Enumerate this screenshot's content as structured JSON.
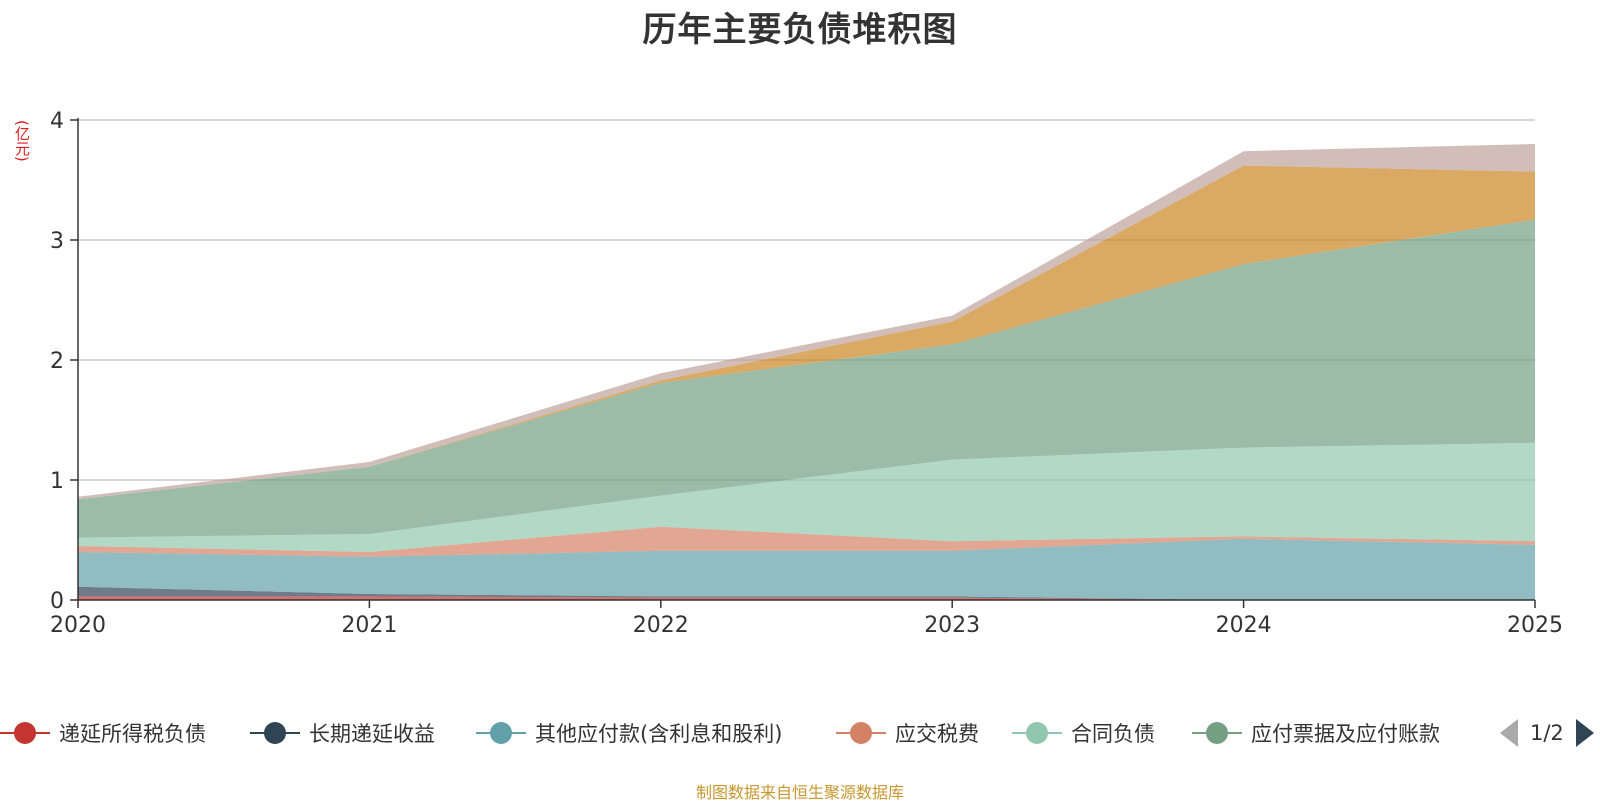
{
  "title": "历年主要负债堆积图",
  "unit_label": "(亿元)",
  "source": "制图数据来自恒生聚源数据库",
  "legend_pager": {
    "text": "1/2"
  },
  "chart_data": {
    "type": "area",
    "stacked": true,
    "title": "历年主要负债堆积图",
    "ylabel": "(亿元)",
    "xlabel": "",
    "x": [
      "2020",
      "2021",
      "2022",
      "2023",
      "2024",
      "2025"
    ],
    "ylim": [
      0,
      4
    ],
    "yticks": [
      0,
      1,
      2,
      3,
      4
    ],
    "grid": true,
    "legend_position": "bottom",
    "series": [
      {
        "name": "递延所得税负债",
        "color": "#c23531",
        "values": [
          0.03,
          0.03,
          0.02,
          0.02,
          0.0,
          0.0
        ],
        "legend": true
      },
      {
        "name": "长期递延收益",
        "color": "#2f4554",
        "values": [
          0.08,
          0.02,
          0.01,
          0.01,
          0.0,
          0.0
        ],
        "legend": true
      },
      {
        "name": "其他应付款(含利息和股利)",
        "color": "#61a0a8",
        "values": [
          0.29,
          0.31,
          0.38,
          0.38,
          0.51,
          0.46
        ],
        "legend": true
      },
      {
        "name": "应交税费",
        "color": "#d48265",
        "values": [
          0.05,
          0.04,
          0.2,
          0.08,
          0.02,
          0.03
        ],
        "legend": true
      },
      {
        "name": "合同负债",
        "color": "#91c7ae",
        "values": [
          0.07,
          0.15,
          0.26,
          0.68,
          0.74,
          0.82
        ],
        "legend": true
      },
      {
        "name": "应付票据及应付账款",
        "color": "#749f83",
        "values": [
          0.32,
          0.56,
          0.94,
          0.96,
          1.53,
          1.86
        ],
        "legend": true
      },
      {
        "name": "",
        "color": "#ca8622",
        "values": [
          0.0,
          0.0,
          0.02,
          0.19,
          0.82,
          0.4
        ],
        "legend": false
      },
      {
        "name": "",
        "color": "#bda29a",
        "values": [
          0.02,
          0.04,
          0.06,
          0.05,
          0.12,
          0.23
        ],
        "legend": false
      }
    ]
  }
}
